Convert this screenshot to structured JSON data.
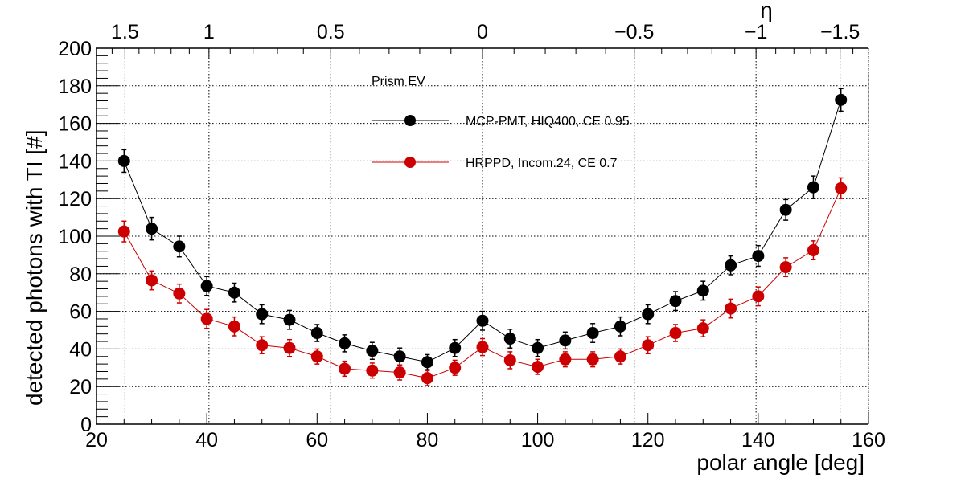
{
  "chart_data": {
    "type": "scatter",
    "title": "",
    "xlabel": "polar angle [deg]",
    "ylabel": "detected photons with TI [#]",
    "xlim": [
      20,
      160
    ],
    "ylim": [
      0,
      200
    ],
    "grid": true,
    "x_ticks": [
      20,
      40,
      60,
      80,
      100,
      120,
      140,
      160
    ],
    "y_ticks": [
      0,
      20,
      40,
      60,
      80,
      100,
      120,
      140,
      160,
      180,
      200
    ],
    "top_axis": {
      "label": "η",
      "ticks": [
        {
          "label": "1.5",
          "eta": 1.5
        },
        {
          "label": "1",
          "eta": 1.0
        },
        {
          "label": "0.5",
          "eta": 0.5
        },
        {
          "label": "0",
          "eta": 0.0
        },
        {
          "label": "−0.5",
          "eta": -0.5
        },
        {
          "label": "−1",
          "eta": -1.0
        },
        {
          "label": "−1.5",
          "eta": -1.5
        }
      ]
    },
    "legend": {
      "title": "Prism EV",
      "position": "top-center"
    },
    "x": [
      25,
      30,
      35,
      40,
      45,
      50,
      55,
      60,
      65,
      70,
      75,
      80,
      85,
      90,
      95,
      100,
      105,
      110,
      115,
      120,
      125,
      130,
      135,
      140,
      145,
      150,
      155
    ],
    "series": [
      {
        "name": "MCP-PMT, HIQ400, CE 0.95",
        "color": "#000000",
        "values": [
          140,
          104,
          94.5,
          73.5,
          70,
          58.5,
          55.5,
          48.5,
          43,
          39,
          36,
          33,
          40.5,
          55,
          45.5,
          40.5,
          44.5,
          48.5,
          52,
          58.5,
          65.5,
          71,
          84.5,
          89.5,
          114,
          126,
          172.5
        ],
        "errors": [
          6,
          6,
          5.5,
          5,
          5,
          5,
          5,
          4.5,
          4.5,
          4.5,
          4.5,
          4,
          4.5,
          5,
          5,
          4.5,
          4.5,
          5,
          5,
          5,
          5,
          5,
          5,
          5.5,
          5.5,
          6,
          6
        ]
      },
      {
        "name": "HRPPD, Incom.24, CE 0.7",
        "color": "#cc0000",
        "values": [
          102.5,
          76.5,
          69.5,
          56,
          52,
          42,
          40.5,
          36,
          29.5,
          28.5,
          27.5,
          24.5,
          30,
          41,
          34,
          30.5,
          34.5,
          34.5,
          36,
          42,
          48.5,
          51,
          61.5,
          68,
          83.5,
          92.5,
          125.5
        ],
        "errors": [
          5.5,
          5,
          5,
          5,
          5,
          4.5,
          4.5,
          4,
          4,
          4,
          4,
          4,
          4,
          4.5,
          4.5,
          4,
          4,
          4,
          4,
          4.5,
          4.5,
          4.5,
          5,
          5,
          5,
          5,
          5.5
        ]
      }
    ]
  }
}
